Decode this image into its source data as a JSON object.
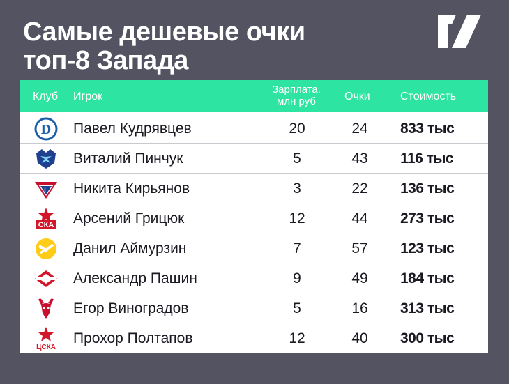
{
  "title": {
    "line1": "Самые дешевые очки",
    "line2": "топ-8 Запада"
  },
  "header": {
    "club": "Клуб",
    "player": "Игрок",
    "salary_line1": "Зарплата.",
    "salary_line2": "млн руб",
    "points": "Очки",
    "cost": "Стоимость"
  },
  "rows": [
    {
      "club_icon": "dynamo-moscow-logo-icon",
      "player": "Павел Кудрявцев",
      "salary": "20",
      "points": "24",
      "cost": "833 тыс"
    },
    {
      "club_icon": "dynamo-minsk-logo-icon",
      "player": "Виталий Пинчук",
      "salary": "5",
      "points": "43",
      "cost": "116 тыс"
    },
    {
      "club_icon": "lokomotiv-logo-icon",
      "player": "Никита Кирьянов",
      "salary": "3",
      "points": "22",
      "cost": "136 тыс"
    },
    {
      "club_icon": "ska-logo-icon",
      "player": "Арсений Грицюк",
      "salary": "12",
      "points": "44",
      "cost": "273 тыс"
    },
    {
      "club_icon": "severstal-logo-icon",
      "player": "Данил Аймурзин",
      "salary": "7",
      "points": "57",
      "cost": "123 тыс"
    },
    {
      "club_icon": "spartak-logo-icon",
      "player": "Александр Пашин",
      "salary": "9",
      "points": "49",
      "cost": "184 тыс"
    },
    {
      "club_icon": "torpedo-logo-icon",
      "player": "Егор Виноградов",
      "salary": "5",
      "points": "16",
      "cost": "313 тыс"
    },
    {
      "club_icon": "cska-logo-icon",
      "player": "Прохор Полтапов",
      "salary": "12",
      "points": "40",
      "cost": "300 тыс"
    }
  ],
  "colors": {
    "background": "#535362",
    "header": "#2ee4a3",
    "text": "#1a1a22"
  }
}
